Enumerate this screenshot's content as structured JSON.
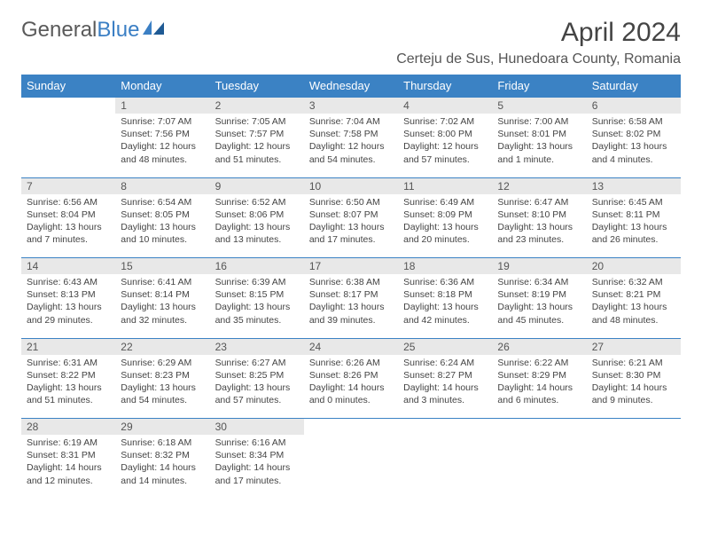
{
  "logo": {
    "text1": "General",
    "text2": "Blue"
  },
  "title": "April 2024",
  "location": "Certeju de Sus, Hunedoara County, Romania",
  "colors": {
    "header_bg": "#3b82c4",
    "header_fg": "#ffffff",
    "daynum_bg": "#e8e8e8",
    "border": "#3b82c4",
    "text": "#444444"
  },
  "weekdays": [
    "Sunday",
    "Monday",
    "Tuesday",
    "Wednesday",
    "Thursday",
    "Friday",
    "Saturday"
  ],
  "weeks": [
    {
      "nums": [
        "",
        "1",
        "2",
        "3",
        "4",
        "5",
        "6"
      ],
      "cells": [
        null,
        {
          "sunrise": "Sunrise: 7:07 AM",
          "sunset": "Sunset: 7:56 PM",
          "day1": "Daylight: 12 hours",
          "day2": "and 48 minutes."
        },
        {
          "sunrise": "Sunrise: 7:05 AM",
          "sunset": "Sunset: 7:57 PM",
          "day1": "Daylight: 12 hours",
          "day2": "and 51 minutes."
        },
        {
          "sunrise": "Sunrise: 7:04 AM",
          "sunset": "Sunset: 7:58 PM",
          "day1": "Daylight: 12 hours",
          "day2": "and 54 minutes."
        },
        {
          "sunrise": "Sunrise: 7:02 AM",
          "sunset": "Sunset: 8:00 PM",
          "day1": "Daylight: 12 hours",
          "day2": "and 57 minutes."
        },
        {
          "sunrise": "Sunrise: 7:00 AM",
          "sunset": "Sunset: 8:01 PM",
          "day1": "Daylight: 13 hours",
          "day2": "and 1 minute."
        },
        {
          "sunrise": "Sunrise: 6:58 AM",
          "sunset": "Sunset: 8:02 PM",
          "day1": "Daylight: 13 hours",
          "day2": "and 4 minutes."
        }
      ]
    },
    {
      "nums": [
        "7",
        "8",
        "9",
        "10",
        "11",
        "12",
        "13"
      ],
      "cells": [
        {
          "sunrise": "Sunrise: 6:56 AM",
          "sunset": "Sunset: 8:04 PM",
          "day1": "Daylight: 13 hours",
          "day2": "and 7 minutes."
        },
        {
          "sunrise": "Sunrise: 6:54 AM",
          "sunset": "Sunset: 8:05 PM",
          "day1": "Daylight: 13 hours",
          "day2": "and 10 minutes."
        },
        {
          "sunrise": "Sunrise: 6:52 AM",
          "sunset": "Sunset: 8:06 PM",
          "day1": "Daylight: 13 hours",
          "day2": "and 13 minutes."
        },
        {
          "sunrise": "Sunrise: 6:50 AM",
          "sunset": "Sunset: 8:07 PM",
          "day1": "Daylight: 13 hours",
          "day2": "and 17 minutes."
        },
        {
          "sunrise": "Sunrise: 6:49 AM",
          "sunset": "Sunset: 8:09 PM",
          "day1": "Daylight: 13 hours",
          "day2": "and 20 minutes."
        },
        {
          "sunrise": "Sunrise: 6:47 AM",
          "sunset": "Sunset: 8:10 PM",
          "day1": "Daylight: 13 hours",
          "day2": "and 23 minutes."
        },
        {
          "sunrise": "Sunrise: 6:45 AM",
          "sunset": "Sunset: 8:11 PM",
          "day1": "Daylight: 13 hours",
          "day2": "and 26 minutes."
        }
      ]
    },
    {
      "nums": [
        "14",
        "15",
        "16",
        "17",
        "18",
        "19",
        "20"
      ],
      "cells": [
        {
          "sunrise": "Sunrise: 6:43 AM",
          "sunset": "Sunset: 8:13 PM",
          "day1": "Daylight: 13 hours",
          "day2": "and 29 minutes."
        },
        {
          "sunrise": "Sunrise: 6:41 AM",
          "sunset": "Sunset: 8:14 PM",
          "day1": "Daylight: 13 hours",
          "day2": "and 32 minutes."
        },
        {
          "sunrise": "Sunrise: 6:39 AM",
          "sunset": "Sunset: 8:15 PM",
          "day1": "Daylight: 13 hours",
          "day2": "and 35 minutes."
        },
        {
          "sunrise": "Sunrise: 6:38 AM",
          "sunset": "Sunset: 8:17 PM",
          "day1": "Daylight: 13 hours",
          "day2": "and 39 minutes."
        },
        {
          "sunrise": "Sunrise: 6:36 AM",
          "sunset": "Sunset: 8:18 PM",
          "day1": "Daylight: 13 hours",
          "day2": "and 42 minutes."
        },
        {
          "sunrise": "Sunrise: 6:34 AM",
          "sunset": "Sunset: 8:19 PM",
          "day1": "Daylight: 13 hours",
          "day2": "and 45 minutes."
        },
        {
          "sunrise": "Sunrise: 6:32 AM",
          "sunset": "Sunset: 8:21 PM",
          "day1": "Daylight: 13 hours",
          "day2": "and 48 minutes."
        }
      ]
    },
    {
      "nums": [
        "21",
        "22",
        "23",
        "24",
        "25",
        "26",
        "27"
      ],
      "cells": [
        {
          "sunrise": "Sunrise: 6:31 AM",
          "sunset": "Sunset: 8:22 PM",
          "day1": "Daylight: 13 hours",
          "day2": "and 51 minutes."
        },
        {
          "sunrise": "Sunrise: 6:29 AM",
          "sunset": "Sunset: 8:23 PM",
          "day1": "Daylight: 13 hours",
          "day2": "and 54 minutes."
        },
        {
          "sunrise": "Sunrise: 6:27 AM",
          "sunset": "Sunset: 8:25 PM",
          "day1": "Daylight: 13 hours",
          "day2": "and 57 minutes."
        },
        {
          "sunrise": "Sunrise: 6:26 AM",
          "sunset": "Sunset: 8:26 PM",
          "day1": "Daylight: 14 hours",
          "day2": "and 0 minutes."
        },
        {
          "sunrise": "Sunrise: 6:24 AM",
          "sunset": "Sunset: 8:27 PM",
          "day1": "Daylight: 14 hours",
          "day2": "and 3 minutes."
        },
        {
          "sunrise": "Sunrise: 6:22 AM",
          "sunset": "Sunset: 8:29 PM",
          "day1": "Daylight: 14 hours",
          "day2": "and 6 minutes."
        },
        {
          "sunrise": "Sunrise: 6:21 AM",
          "sunset": "Sunset: 8:30 PM",
          "day1": "Daylight: 14 hours",
          "day2": "and 9 minutes."
        }
      ]
    },
    {
      "nums": [
        "28",
        "29",
        "30",
        "",
        "",
        "",
        ""
      ],
      "cells": [
        {
          "sunrise": "Sunrise: 6:19 AM",
          "sunset": "Sunset: 8:31 PM",
          "day1": "Daylight: 14 hours",
          "day2": "and 12 minutes."
        },
        {
          "sunrise": "Sunrise: 6:18 AM",
          "sunset": "Sunset: 8:32 PM",
          "day1": "Daylight: 14 hours",
          "day2": "and 14 minutes."
        },
        {
          "sunrise": "Sunrise: 6:16 AM",
          "sunset": "Sunset: 8:34 PM",
          "day1": "Daylight: 14 hours",
          "day2": "and 17 minutes."
        },
        null,
        null,
        null,
        null
      ]
    }
  ]
}
